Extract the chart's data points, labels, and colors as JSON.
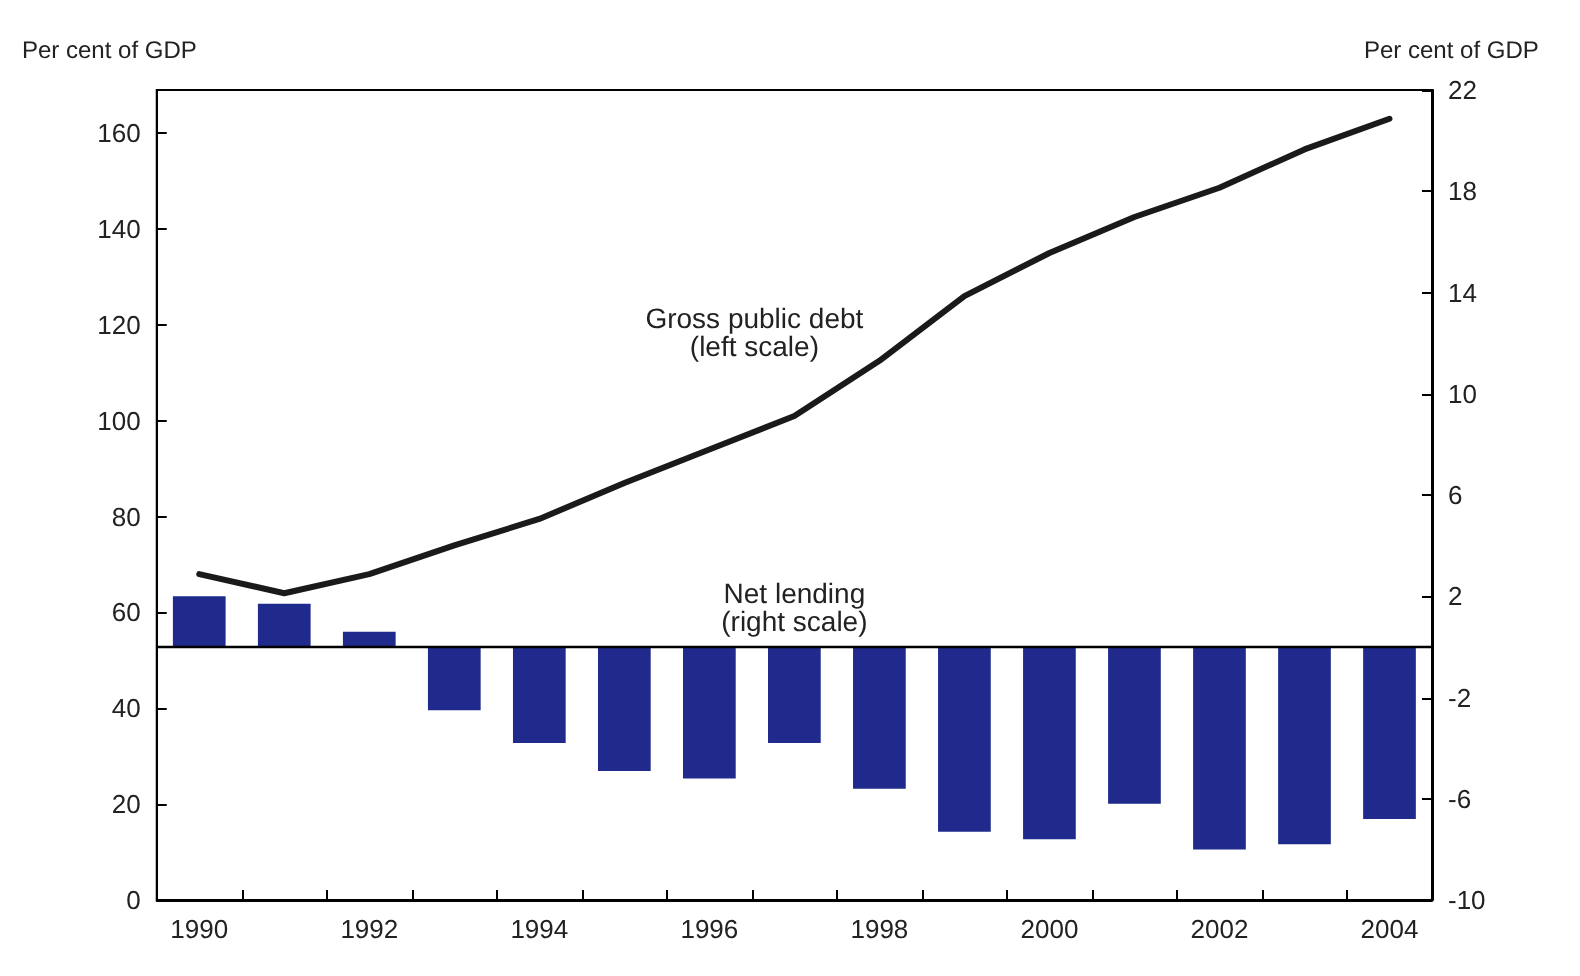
{
  "chart_data": {
    "type": "bar",
    "ylabel": "Per cent of GDP",
    "y2label": "Per cent of GDP",
    "categories": [
      "1990",
      null,
      "1992",
      null,
      "1994",
      null,
      "1996",
      null,
      "1998",
      null,
      "2000",
      null,
      "2002",
      null,
      "2004"
    ],
    "series": [
      {
        "name": "Net lending\n(right scale)",
        "axis": "y2",
        "color": "#1f2a8c",
        "values": [
          2.0,
          1.7,
          0.6,
          -2.5,
          -3.8,
          -4.9,
          -5.2,
          -3.8,
          -5.6,
          -7.3,
          -7.6,
          -6.2,
          -8.0,
          -7.8,
          -6.8
        ]
      },
      {
        "name": "Gross public debt\n(left scale)",
        "type": "line",
        "color": "#1a1a1a",
        "values": [
          68,
          64,
          68,
          74,
          79.5,
          87,
          94,
          101,
          112.5,
          126,
          135,
          142.5,
          148.6,
          156.6,
          163
        ]
      }
    ],
    "ylim": [
      0,
      169
    ],
    "yticks": [
      0,
      20,
      40,
      60,
      80,
      100,
      120,
      140,
      160
    ],
    "y2lim": [
      -10,
      22
    ],
    "y2ticks": [
      -10,
      -6,
      -2,
      2,
      6,
      10,
      14,
      18,
      22
    ],
    "ref_lines": [
      {
        "axis": "y2",
        "value": 0,
        "color": "#000000"
      }
    ],
    "marker": "none",
    "line_style": "solid",
    "grid": false,
    "legend": false
  }
}
